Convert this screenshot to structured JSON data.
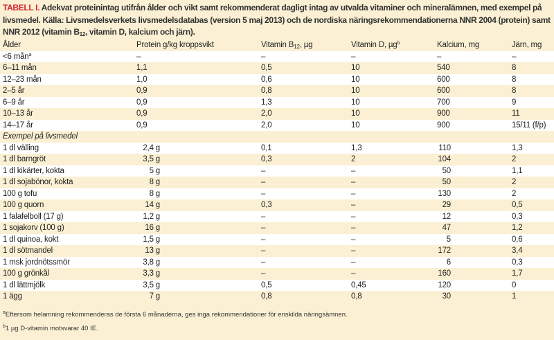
{
  "caption": {
    "label": "TABELL I.",
    "text": "Adekvat proteinintag utifrån ålder och vikt samt rekommenderat dagligt intag av utvalda vitaminer och mineralämnen, med exempel på livsmedel. Källa: Livsmedelsverkets livsmedelsdatabas (version 5 maj 2013) och de nordiska näringsrekommendationerna NNR 2004 (protein) samt NNR 2012 (vitamin B",
    "sub": "12",
    "text_end": ", vitamin D, kalcium och järn)."
  },
  "headers": {
    "age": "Ålder",
    "protein": "Protein g/kg kroppsvikt",
    "b12": "Vitamin B",
    "b12_sub": "12",
    "b12_unit": ", µg",
    "vitd": "Vitamin D, µg",
    "vitd_sup": "b",
    "calcium": "Kalcium, mg",
    "iron": "Järn, mg"
  },
  "age_rows": [
    {
      "age": "<6 mån",
      "sup": "a",
      "protein": "–",
      "b12": "–",
      "vitd": "–",
      "calcium": "–",
      "iron": "–"
    },
    {
      "age": "6–11 mån",
      "protein": "1,1",
      "b12": "0,5",
      "vitd": "10",
      "calcium": "540",
      "iron": "8"
    },
    {
      "age": "12–23 mån",
      "protein": "1,0",
      "b12": "0,6",
      "vitd": "10",
      "calcium": "600",
      "iron": "8"
    },
    {
      "age": "2–5 år",
      "protein": "0,9",
      "b12": "0,8",
      "vitd": "10",
      "calcium": "600",
      "iron": "8"
    },
    {
      "age": "6–9 år",
      "protein": "0,9",
      "b12": "1,3",
      "vitd": "10",
      "calcium": "700",
      "iron": "9"
    },
    {
      "age": "10–13 år",
      "protein": "0,9",
      "b12": "2,0",
      "vitd": "10",
      "calcium": "900",
      "iron": "11"
    },
    {
      "age": "14–17 år",
      "protein": "0,9",
      "b12": "2,0",
      "vitd": "10",
      "calcium": "900",
      "iron": "15/11 (f/p)"
    }
  ],
  "section_label": "Exempel på livsmedel",
  "food_rows": [
    {
      "food": "1 dl välling",
      "protein": "2,4 g",
      "b12": "0,1",
      "vitd": "1,3",
      "calcium": "110",
      "iron": "1,3"
    },
    {
      "food": "1 dl barngröt",
      "protein": "3,5 g",
      "b12": "0,3",
      "vitd": "2",
      "calcium": "104",
      "iron": "2"
    },
    {
      "food": "1 dl kikärter, kokta",
      "protein": "5 g",
      "b12": "–",
      "vitd": "–",
      "calcium": "50",
      "iron": "1,1"
    },
    {
      "food": "1 dl sojabönor, kokta",
      "protein": "8 g",
      "b12": "–",
      "vitd": "–",
      "calcium": "50",
      "iron": "2"
    },
    {
      "food": "100 g tofu",
      "protein": "8 g",
      "b12": "–",
      "vitd": "–",
      "calcium": "130",
      "iron": "2"
    },
    {
      "food": "100 g quorn",
      "protein": "14 g",
      "b12": "0,3",
      "vitd": "–",
      "calcium": "29",
      "iron": "0,5"
    },
    {
      "food": "1 falafelboll (17 g)",
      "protein": "1,2 g",
      "b12": "–",
      "vitd": "–",
      "calcium": "12",
      "iron": "0,3"
    },
    {
      "food": "1 sojakorv (100 g)",
      "protein": "16 g",
      "b12": "–",
      "vitd": "–",
      "calcium": "47",
      "iron": "1,2"
    },
    {
      "food": "1 dl quinoa, kokt",
      "protein": "1,5 g",
      "b12": "–",
      "vitd": "–",
      "calcium": "5",
      "iron": "0,6"
    },
    {
      "food": "1 dl sötmandel",
      "protein": "13 g",
      "b12": "–",
      "vitd": "–",
      "calcium": "172",
      "iron": "3,4"
    },
    {
      "food": "1 msk jordnötssmör",
      "protein": "3,8 g",
      "b12": "–",
      "vitd": "–",
      "calcium": "6",
      "iron": "0,3"
    },
    {
      "food": "100 g grönkål",
      "protein": "3,3 g",
      "b12": "–",
      "vitd": "–",
      "calcium": "160",
      "iron": "1,7"
    },
    {
      "food": "1 dl lättmjölk",
      "protein": "3,5 g",
      "b12": "0,5",
      "vitd": "0,45",
      "calcium": "120",
      "iron": "0"
    },
    {
      "food": "1 ägg",
      "protein": "7 g",
      "b12": "0,8",
      "vitd": "0,8",
      "calcium": "30",
      "iron": "1"
    }
  ],
  "footnotes": [
    {
      "mark": "a",
      "text": "Eftersom helamning rekommenderas de första 6 månaderna, ges inga rekommendationer för enskilda näringsämnen."
    },
    {
      "mark": "b",
      "text": "1 µg D-vitamin motsvarar 40 IE."
    }
  ]
}
